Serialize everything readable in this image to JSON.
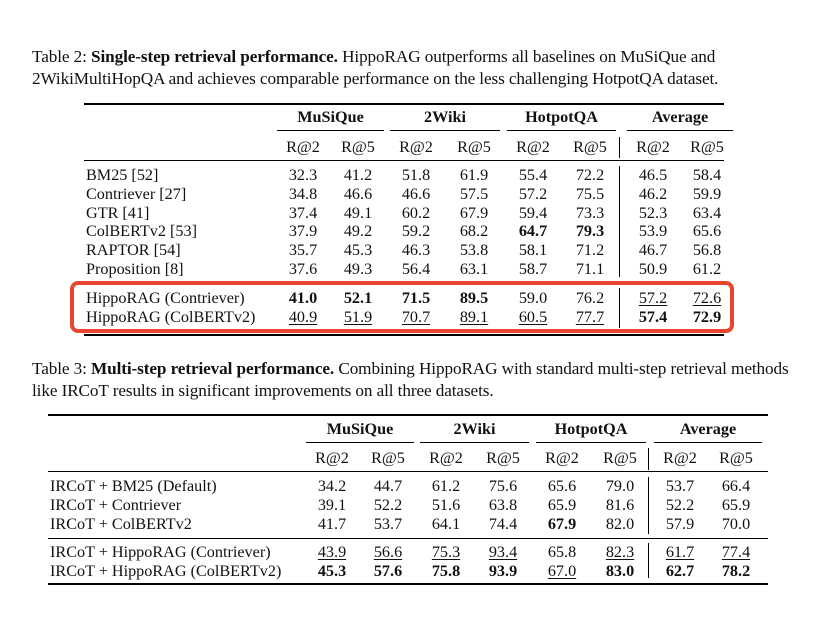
{
  "table2": {
    "caption_label": "Table 2:",
    "caption_bold": "Single-step retrieval performance.",
    "caption_text": "HippoRAG outperforms all baselines on MuSiQue and 2WikiMultiHopQA and achieves comparable performance on the less challenging HotpotQA dataset.",
    "groups": [
      "MuSiQue",
      "2Wiki",
      "HotpotQA",
      "Average"
    ],
    "subheaders": [
      "R@2",
      "R@5",
      "R@2",
      "R@5",
      "R@2",
      "R@5",
      "R@2",
      "R@5"
    ],
    "rows": [
      {
        "method": "BM25 [52]",
        "values": [
          "32.3",
          "41.2",
          "51.8",
          "61.9",
          "55.4",
          "72.2",
          "46.5",
          "58.4"
        ],
        "bold": [],
        "underline": []
      },
      {
        "method": "Contriever [27]",
        "values": [
          "34.8",
          "46.6",
          "46.6",
          "57.5",
          "57.2",
          "75.5",
          "46.2",
          "59.9"
        ],
        "bold": [],
        "underline": []
      },
      {
        "method": "GTR [41]",
        "values": [
          "37.4",
          "49.1",
          "60.2",
          "67.9",
          "59.4",
          "73.3",
          "52.3",
          "63.4"
        ],
        "bold": [],
        "underline": []
      },
      {
        "method": "ColBERTv2 [53]",
        "values": [
          "37.9",
          "49.2",
          "59.2",
          "68.2",
          "64.7",
          "79.3",
          "53.9",
          "65.6"
        ],
        "bold": [
          4,
          5
        ],
        "underline": []
      },
      {
        "method": "RAPTOR [54]",
        "values": [
          "35.7",
          "45.3",
          "46.3",
          "53.8",
          "58.1",
          "71.2",
          "46.7",
          "56.8"
        ],
        "bold": [],
        "underline": []
      },
      {
        "method": "Proposition [8]",
        "values": [
          "37.6",
          "49.3",
          "56.4",
          "63.1",
          "58.7",
          "71.1",
          "50.9",
          "61.2"
        ],
        "bold": [],
        "underline": []
      },
      {
        "method": "HippoRAG (Contriever)",
        "values": [
          "41.0",
          "52.1",
          "71.5",
          "89.5",
          "59.0",
          "76.2",
          "57.2",
          "72.6"
        ],
        "bold": [
          0,
          1,
          2,
          3
        ],
        "underline": [
          6,
          7
        ]
      },
      {
        "method": "HippoRAG (ColBERTv2)",
        "values": [
          "40.9",
          "51.9",
          "70.7",
          "89.1",
          "60.5",
          "77.7",
          "57.4",
          "72.9"
        ],
        "bold": [
          6,
          7
        ],
        "underline": [
          0,
          1,
          2,
          3,
          4,
          5
        ]
      }
    ]
  },
  "table3": {
    "caption_label": "Table 3:",
    "caption_bold": "Multi-step retrieval performance.",
    "caption_text": "Combining HippoRAG with standard multi-step retrieval methods like IRCoT results in significant improvements on all three datasets.",
    "groups": [
      "MuSiQue",
      "2Wiki",
      "HotpotQA",
      "Average"
    ],
    "subheaders": [
      "R@2",
      "R@5",
      "R@2",
      "R@5",
      "R@2",
      "R@5",
      "R@2",
      "R@5"
    ],
    "rows": [
      {
        "method": "IRCoT + BM25 (Default)",
        "values": [
          "34.2",
          "44.7",
          "61.2",
          "75.6",
          "65.6",
          "79.0",
          "53.7",
          "66.4"
        ],
        "bold": [],
        "underline": []
      },
      {
        "method": "IRCoT + Contriever",
        "values": [
          "39.1",
          "52.2",
          "51.6",
          "63.8",
          "65.9",
          "81.6",
          "52.2",
          "65.9"
        ],
        "bold": [],
        "underline": []
      },
      {
        "method": "IRCoT + ColBERTv2",
        "values": [
          "41.7",
          "53.7",
          "64.1",
          "74.4",
          "67.9",
          "82.0",
          "57.9",
          "70.0"
        ],
        "bold": [
          4
        ],
        "underline": []
      },
      {
        "method": "IRCoT + HippoRAG (Contriever)",
        "values": [
          "43.9",
          "56.6",
          "75.3",
          "93.4",
          "65.8",
          "82.3",
          "61.7",
          "77.4"
        ],
        "bold": [],
        "underline": [
          0,
          1,
          2,
          3,
          5,
          6,
          7
        ]
      },
      {
        "method": "IRCoT + HippoRAG (ColBERTv2)",
        "values": [
          "45.3",
          "57.6",
          "75.8",
          "93.9",
          "67.0",
          "83.0",
          "62.7",
          "78.2"
        ],
        "bold": [
          0,
          1,
          2,
          3,
          5,
          6,
          7
        ],
        "underline": [
          4
        ]
      }
    ]
  }
}
